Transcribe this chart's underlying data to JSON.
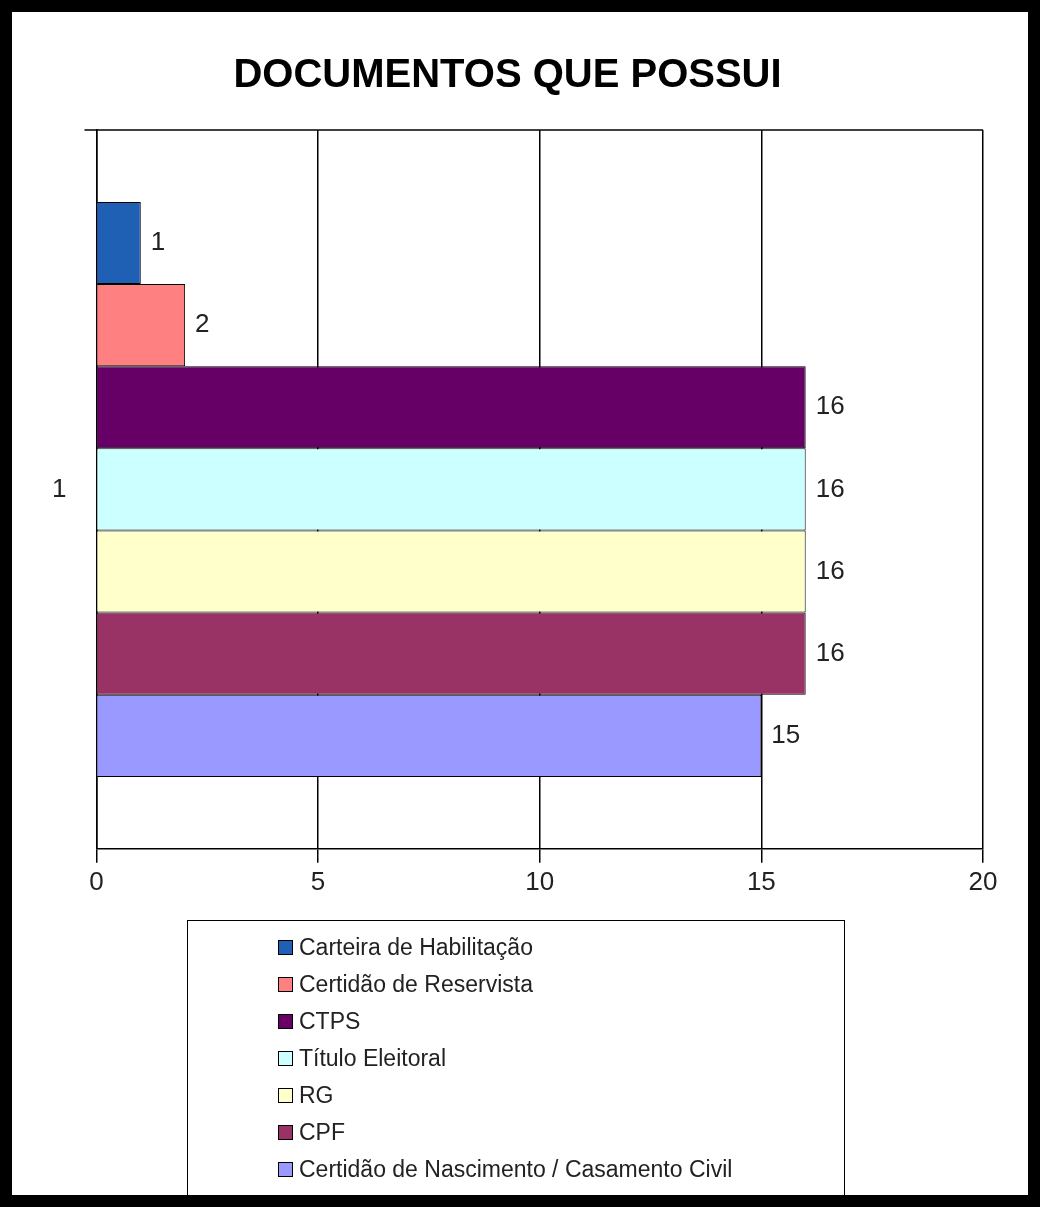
{
  "chart_data": {
    "type": "bar",
    "orientation": "horizontal",
    "title": "DOCUMENTOS QUE POSSUI",
    "categories": [
      "1"
    ],
    "series": [
      {
        "name": "Carteira de Habilitação",
        "color": "#1f5fb4",
        "values": [
          1
        ]
      },
      {
        "name": "Certidão de Reservista",
        "color": "#ff8080",
        "values": [
          2
        ]
      },
      {
        "name": "CTPS",
        "color": "#660066",
        "values": [
          16
        ]
      },
      {
        "name": "Título Eleitoral",
        "color": "#ccffff",
        "values": [
          16
        ]
      },
      {
        "name": "RG",
        "color": "#ffffcc",
        "values": [
          16
        ]
      },
      {
        "name": "CPF",
        "color": "#993366",
        "values": [
          16
        ]
      },
      {
        "name": "Certidão de Nascimento / Casamento Civil",
        "color": "#9999ff",
        "values": [
          15
        ]
      }
    ],
    "xlim": [
      0,
      20
    ],
    "xticks": [
      0,
      5,
      10,
      15,
      20
    ],
    "grid": "x",
    "legend": "bottom",
    "data_labels": true
  }
}
